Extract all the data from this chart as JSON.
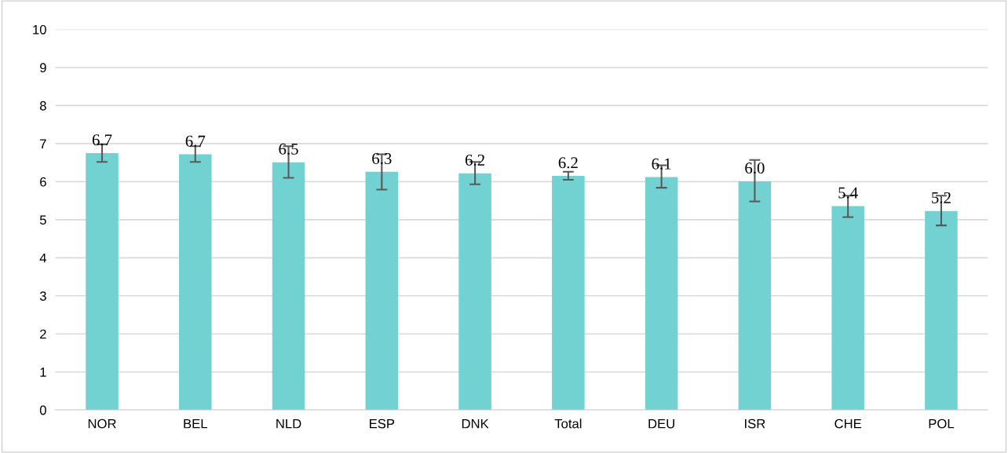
{
  "chart_data": {
    "type": "bar",
    "categories": [
      "NOR",
      "BEL",
      "NLD",
      "ESP",
      "DNK",
      "Total",
      "DEU",
      "ISR",
      "CHE",
      "POL"
    ],
    "values": [
      6.75,
      6.72,
      6.51,
      6.26,
      6.22,
      6.15,
      6.12,
      6.01,
      5.36,
      5.23
    ],
    "errors": [
      [
        6.52,
        6.98
      ],
      [
        6.52,
        6.93
      ],
      [
        6.1,
        6.93
      ],
      [
        5.79,
        6.72
      ],
      [
        5.93,
        6.52
      ],
      [
        6.05,
        6.26
      ],
      [
        5.84,
        6.43
      ],
      [
        5.48,
        6.57
      ],
      [
        5.07,
        5.63
      ],
      [
        4.85,
        5.63
      ]
    ],
    "value_labels": [
      "6.7",
      "6.7",
      "6.5",
      "6.3",
      "6.2",
      "6.2",
      "6.1",
      "6.0",
      "5.4",
      "5.2"
    ],
    "color": "#72d2d1",
    "ylim": [
      0,
      10
    ],
    "yticks": [
      0,
      1,
      2,
      3,
      4,
      5,
      6,
      7,
      8,
      9,
      10
    ],
    "grid": "y",
    "legend": false
  }
}
